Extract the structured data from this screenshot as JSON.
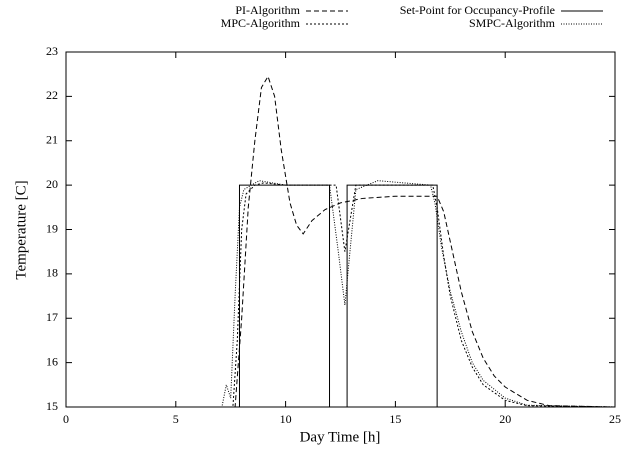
{
  "chart_data": {
    "type": "line",
    "xlabel": "Day Time [h]",
    "ylabel": "Temperature [C]",
    "xlim": [
      0,
      25
    ],
    "xticks": [
      0,
      5,
      10,
      15,
      20,
      25
    ],
    "ylim": [
      15,
      23
    ],
    "yticks": [
      15,
      16,
      17,
      18,
      19,
      20,
      21,
      22,
      23
    ],
    "legend": "top",
    "series": [
      {
        "name": "PI-Algorithm",
        "color": "#000000",
        "line_style": "dashed",
        "x": [
          0,
          7.7,
          8.0,
          8.3,
          8.6,
          8.9,
          9.2,
          9.5,
          9.8,
          10.2,
          10.5,
          10.8,
          11.2,
          11.8,
          12.5,
          13.5,
          15,
          16.9,
          17.2,
          17.6,
          18,
          18.5,
          19,
          19.5,
          20,
          21,
          22,
          25
        ],
        "values": [
          15,
          15,
          17,
          19.5,
          21,
          22.2,
          22.45,
          22,
          20.8,
          19.6,
          19.1,
          18.9,
          19.2,
          19.45,
          19.6,
          19.7,
          19.75,
          19.75,
          19.4,
          18.5,
          17.6,
          16.7,
          16.1,
          15.7,
          15.45,
          15.15,
          15.03,
          15
        ]
      },
      {
        "name": "Set-Point for Occupancy-Profile",
        "color": "#000000",
        "line_style": "solid",
        "x": [
          0,
          7.9,
          7.9,
          12.0,
          12.0,
          12.8,
          12.8,
          16.9,
          16.9,
          25
        ],
        "values": [
          15,
          15,
          20,
          20,
          15,
          15,
          20,
          20,
          15,
          15
        ]
      },
      {
        "name": "MPC-Algorithm",
        "color": "#000000",
        "line_style": "dotted",
        "x": [
          0,
          7.6,
          7.8,
          8.0,
          8.2,
          8.6,
          9.0,
          10,
          12.3,
          12.7,
          13.2,
          16.7,
          16.9,
          17.2,
          17.5,
          18,
          18.5,
          19,
          20,
          21,
          25
        ],
        "values": [
          15,
          15,
          16.5,
          19,
          19.8,
          20.0,
          20.05,
          20,
          20,
          18.5,
          20,
          20,
          19.5,
          18.4,
          17.5,
          16.5,
          15.9,
          15.5,
          15.15,
          15.03,
          15
        ]
      },
      {
        "name": "SMPC-Algorithm",
        "color": "#000000",
        "line_style": "dense-dotted",
        "x": [
          0,
          7.1,
          7.3,
          7.5,
          7.7,
          7.9,
          8.1,
          8.8,
          10,
          12.0,
          12.4,
          12.7,
          13.2,
          14.2,
          16.6,
          16.8,
          17.1,
          17.5,
          18,
          18.5,
          19,
          20,
          21,
          25
        ],
        "values": [
          15,
          15,
          15.5,
          15.2,
          17.5,
          19.5,
          19.9,
          20.1,
          20,
          20,
          18.5,
          17.3,
          19.9,
          20.1,
          20,
          19.6,
          18.6,
          17.6,
          16.7,
          16,
          15.6,
          15.2,
          15.04,
          15
        ]
      }
    ]
  }
}
